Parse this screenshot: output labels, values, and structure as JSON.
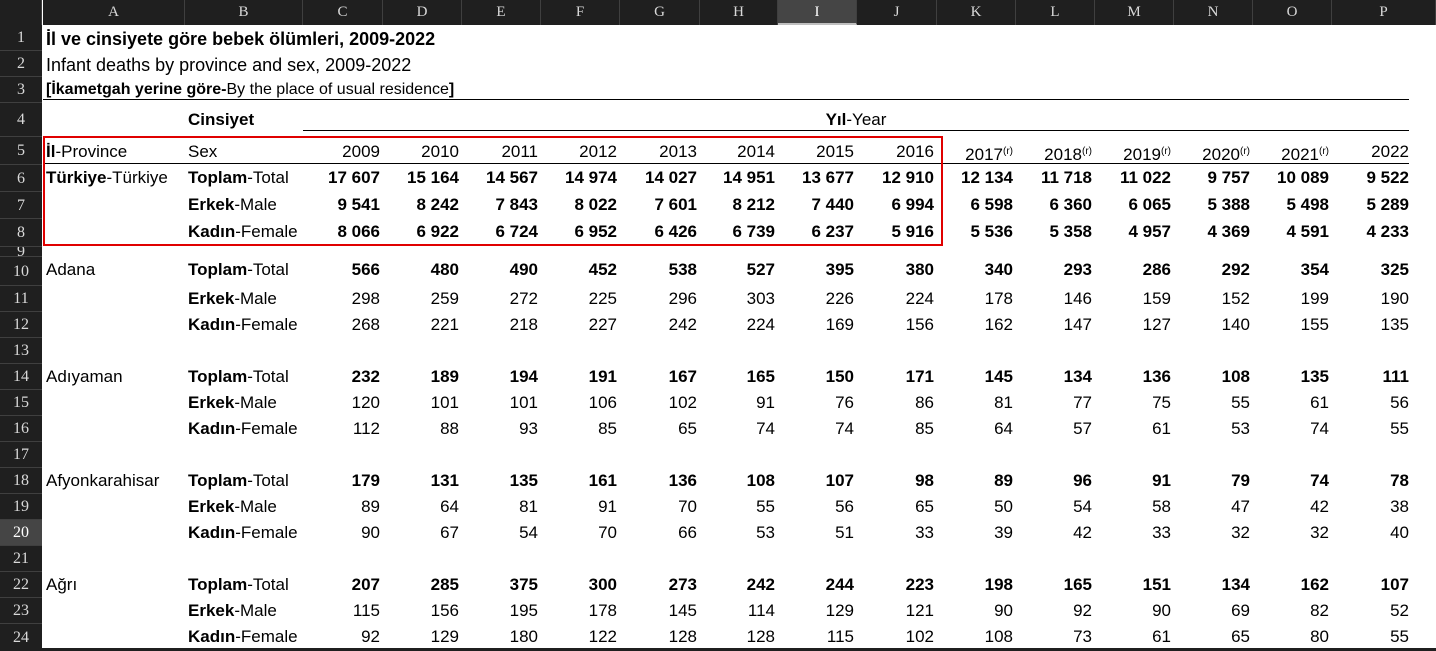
{
  "sheet": {
    "columns": [
      "A",
      "B",
      "C",
      "D",
      "E",
      "F",
      "G",
      "H",
      "I",
      "J",
      "K",
      "L",
      "M",
      "N",
      "O",
      "P"
    ],
    "selected_column": "I",
    "rows": [
      "1",
      "2",
      "3",
      "4",
      "5",
      "6",
      "7",
      "8",
      "9",
      "10",
      "11",
      "12",
      "13",
      "14",
      "15",
      "16",
      "17",
      "18",
      "19",
      "20",
      "21",
      "22",
      "23",
      "24"
    ],
    "selected_row": "20"
  },
  "title_tr": "İl ve cinsiyete göre bebek ölümleri, 2009-2022",
  "title_en": "Infant deaths by province and sex, 2009-2022",
  "note_bold": "[İkametgah yerine göre-",
  "note_plain": "By the place of usual residence",
  "note_end": "]",
  "header": {
    "cinsiyet": "Cinsiyet",
    "yil_bold": "Yıl",
    "yil_plain": "-Year",
    "province_bold": "İl",
    "province_plain": "-Province",
    "sex": "Sex",
    "years": [
      "2009",
      "2010",
      "2011",
      "2012",
      "2013",
      "2014",
      "2015",
      "2016",
      "2017",
      "2018",
      "2019",
      "2020",
      "2021",
      "2022"
    ],
    "revised_mark": "(r)"
  },
  "blocks": [
    {
      "name_bold": "Türkiye",
      "name_plain": "-Türkiye",
      "rows": [
        {
          "label_bold": "Toplam",
          "label_plain": "-Total",
          "values": [
            "17 607",
            "15 164",
            "14 567",
            "14 974",
            "14 027",
            "14 951",
            "13 677",
            "12 910",
            "12 134",
            "11 718",
            "11 022",
            "9 757",
            "10 089",
            "9 522"
          ]
        },
        {
          "label_bold": "Erkek",
          "label_plain": "-Male",
          "values": [
            "9 541",
            "8 242",
            "7 843",
            "8 022",
            "7 601",
            "8 212",
            "7 440",
            "6 994",
            "6 598",
            "6 360",
            "6 065",
            "5 388",
            "5 498",
            "5 289"
          ]
        },
        {
          "label_bold": "Kadın",
          "label_plain": "-Female",
          "values": [
            "8 066",
            "6 922",
            "6 724",
            "6 952",
            "6 426",
            "6 739",
            "6 237",
            "5 916",
            "5 536",
            "5 358",
            "4 957",
            "4 369",
            "4 591",
            "4 233"
          ]
        }
      ]
    },
    {
      "name_bold": "",
      "name_plain": "Adana",
      "rows": [
        {
          "label_bold": "Toplam",
          "label_plain": "-Total",
          "values": [
            "566",
            "480",
            "490",
            "452",
            "538",
            "527",
            "395",
            "380",
            "340",
            "293",
            "286",
            "292",
            "354",
            "325"
          ]
        },
        {
          "label_bold": "Erkek",
          "label_plain": "-Male",
          "values": [
            "298",
            "259",
            "272",
            "225",
            "296",
            "303",
            "226",
            "224",
            "178",
            "146",
            "159",
            "152",
            "199",
            "190"
          ]
        },
        {
          "label_bold": "Kadın",
          "label_plain": "-Female",
          "values": [
            "268",
            "221",
            "218",
            "227",
            "242",
            "224",
            "169",
            "156",
            "162",
            "147",
            "127",
            "140",
            "155",
            "135"
          ]
        }
      ]
    },
    {
      "name_bold": "",
      "name_plain": "Adıyaman",
      "rows": [
        {
          "label_bold": "Toplam",
          "label_plain": "-Total",
          "values": [
            "232",
            "189",
            "194",
            "191",
            "167",
            "165",
            "150",
            "171",
            "145",
            "134",
            "136",
            "108",
            "135",
            "111"
          ]
        },
        {
          "label_bold": "Erkek",
          "label_plain": "-Male",
          "values": [
            "120",
            "101",
            "101",
            "106",
            "102",
            "91",
            "76",
            "86",
            "81",
            "77",
            "75",
            "55",
            "61",
            "56"
          ]
        },
        {
          "label_bold": "Kadın",
          "label_plain": "-Female",
          "values": [
            "112",
            "88",
            "93",
            "85",
            "65",
            "74",
            "74",
            "85",
            "64",
            "57",
            "61",
            "53",
            "74",
            "55"
          ]
        }
      ]
    },
    {
      "name_bold": "",
      "name_plain": "Afyonkarahisar",
      "rows": [
        {
          "label_bold": "Toplam",
          "label_plain": "-Total",
          "values": [
            "179",
            "131",
            "135",
            "161",
            "136",
            "108",
            "107",
            "98",
            "89",
            "96",
            "91",
            "79",
            "74",
            "78"
          ]
        },
        {
          "label_bold": "Erkek",
          "label_plain": "-Male",
          "values": [
            "89",
            "64",
            "81",
            "91",
            "70",
            "55",
            "56",
            "65",
            "50",
            "54",
            "58",
            "47",
            "42",
            "38"
          ]
        },
        {
          "label_bold": "Kadın",
          "label_plain": "-Female",
          "values": [
            "90",
            "67",
            "54",
            "70",
            "66",
            "53",
            "51",
            "33",
            "39",
            "42",
            "33",
            "32",
            "32",
            "40"
          ]
        }
      ]
    },
    {
      "name_bold": "",
      "name_plain": "Ağrı",
      "rows": [
        {
          "label_bold": "Toplam",
          "label_plain": "-Total",
          "values": [
            "207",
            "285",
            "375",
            "300",
            "273",
            "242",
            "244",
            "223",
            "198",
            "165",
            "151",
            "134",
            "162",
            "107"
          ]
        },
        {
          "label_bold": "Erkek",
          "label_plain": "-Male",
          "values": [
            "115",
            "156",
            "195",
            "178",
            "145",
            "114",
            "129",
            "121",
            "90",
            "92",
            "90",
            "69",
            "82",
            "52"
          ]
        },
        {
          "label_bold": "Kadın",
          "label_plain": "-Female",
          "values": [
            "92",
            "129",
            "180",
            "122",
            "128",
            "128",
            "115",
            "102",
            "108",
            "73",
            "61",
            "65",
            "80",
            "55"
          ]
        }
      ]
    }
  ]
}
